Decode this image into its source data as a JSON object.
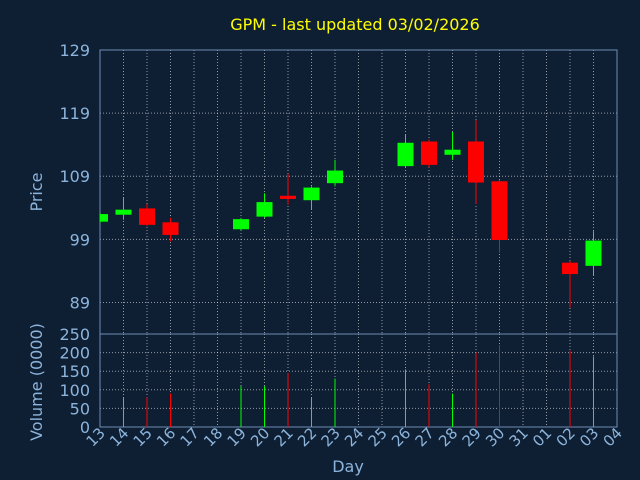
{
  "chart_data": {
    "type": "candlestick",
    "title": "GPM - last updated 03/02/2026",
    "xlabel": "Day",
    "ylabel": "Price",
    "ylabel_volume": "Volume (0000)",
    "ylim": [
      84,
      129
    ],
    "yticks": [
      89,
      99,
      109,
      119,
      129
    ],
    "vol_ylim": [
      0,
      250
    ],
    "vol_yticks": [
      0,
      50,
      100,
      150,
      200,
      250
    ],
    "grid": true,
    "x_labels": [
      "13",
      "14",
      "15",
      "16",
      "17",
      "18",
      "19",
      "20",
      "21",
      "22",
      "23",
      "24",
      "25",
      "26",
      "27",
      "28",
      "29",
      "30",
      "31",
      "01",
      "02",
      "03",
      "04"
    ],
    "candles": [
      {
        "day": "13",
        "open": 101.8,
        "close": 103.0,
        "high": 103.2,
        "low": 101.6,
        "volume": 0
      },
      {
        "day": "14",
        "open": 102.9,
        "close": 103.7,
        "high": 105.6,
        "low": 102.1,
        "volume": 80
      },
      {
        "day": "15",
        "open": 103.9,
        "close": 101.3,
        "high": 104.6,
        "low": 101.1,
        "volume": 80
      },
      {
        "day": "16",
        "open": 101.7,
        "close": 99.7,
        "high": 102.4,
        "low": 98.7,
        "volume": 90
      },
      {
        "day": "19",
        "open": 100.6,
        "close": 102.2,
        "high": 102.4,
        "low": 100.4,
        "volume": 110
      },
      {
        "day": "20",
        "open": 102.6,
        "close": 104.9,
        "high": 106.3,
        "low": 102.4,
        "volume": 110
      },
      {
        "day": "21",
        "open": 105.9,
        "close": 105.4,
        "high": 109.4,
        "low": 104.5,
        "volume": 145
      },
      {
        "day": "22",
        "open": 105.2,
        "close": 107.2,
        "high": 107.4,
        "low": 103.8,
        "volume": 80
      },
      {
        "day": "23",
        "open": 107.9,
        "close": 109.9,
        "high": 111.6,
        "low": 107.4,
        "volume": 130
      },
      {
        "day": "26",
        "open": 110.6,
        "close": 114.3,
        "high": 115.6,
        "low": 110.4,
        "volume": 155
      },
      {
        "day": "27",
        "open": 114.5,
        "close": 110.8,
        "high": 114.8,
        "low": 110.4,
        "volume": 115
      },
      {
        "day": "28",
        "open": 112.4,
        "close": 113.2,
        "high": 116.0,
        "low": 111.6,
        "volume": 90
      },
      {
        "day": "29",
        "open": 114.5,
        "close": 108.0,
        "high": 117.9,
        "low": 104.6,
        "volume": 200
      },
      {
        "day": "30",
        "open": 108.2,
        "close": 98.9,
        "high": 108.4,
        "low": 96.9,
        "volume": 220
      },
      {
        "day": "02",
        "open": 95.3,
        "close": 93.5,
        "high": 95.6,
        "low": 88.2,
        "volume": 205
      },
      {
        "day": "03",
        "open": 94.8,
        "close": 98.8,
        "high": 100.3,
        "low": 93.2,
        "volume": 190
      }
    ],
    "colors": {
      "background": "#0f1f33",
      "up": "#00ff00",
      "down": "#ff0000",
      "grid": "#ffffff",
      "axis_text": "#8cb4dc",
      "title": "#ffff00",
      "frame": "#6e8cb4"
    }
  }
}
